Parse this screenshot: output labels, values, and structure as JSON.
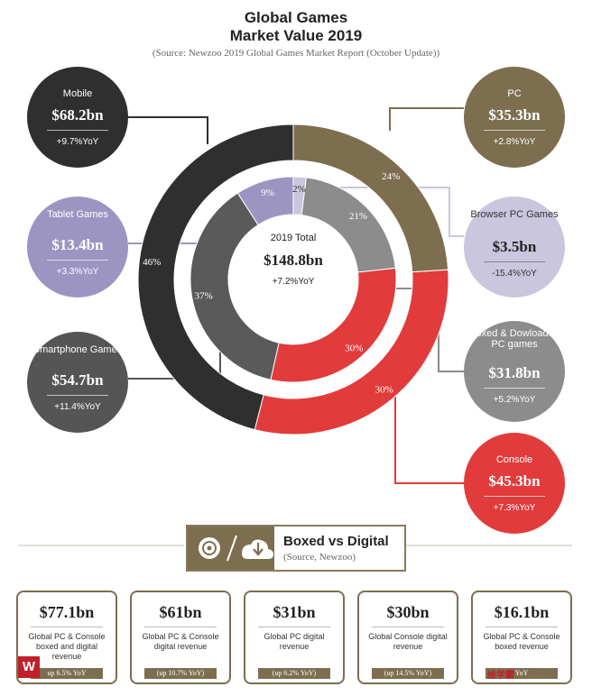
{
  "header": {
    "title_line1": "Global Games",
    "title_line2": "Market Value 2019",
    "source": "(Source: Newzoo 2019 Global Games Market Report (October Update))"
  },
  "center": {
    "label": "2019 Total",
    "value": "$148.8bn",
    "yoy": "+7.2%YoY"
  },
  "chart_data": {
    "type": "donut",
    "unit": "USD billions",
    "rings": [
      {
        "ring": "outer",
        "segments": [
          {
            "name": "PC",
            "percent": 24,
            "percent_label": "24%",
            "value": 35.3,
            "color": "#7d6e4f"
          },
          {
            "name": "Console",
            "percent": 30,
            "percent_label": "30%",
            "value": 45.3,
            "color": "#e23b3b"
          },
          {
            "name": "Mobile",
            "percent": 46,
            "percent_label": "46%",
            "value": 68.2,
            "color": "#2f2f2f"
          }
        ]
      },
      {
        "ring": "inner",
        "segments": [
          {
            "name": "Browser PC Games",
            "percent": 2,
            "percent_label": "2%",
            "value": 3.5,
            "color": "#c9c6de"
          },
          {
            "name": "Boxed & Dowloaded PC games",
            "percent": 21,
            "percent_label": "21%",
            "value": 31.8,
            "color": "#8c8c8c"
          },
          {
            "name": "Console",
            "percent": 30,
            "percent_label": "30%",
            "value": 45.3,
            "color": "#e23b3b"
          },
          {
            "name": "Smartphone Games",
            "percent": 37,
            "percent_label": "37%",
            "value": 54.7,
            "color": "#5a5a5a"
          },
          {
            "name": "Tablet Games",
            "percent": 9,
            "percent_label": "9%",
            "value": 13.4,
            "color": "#9c95c2"
          }
        ]
      }
    ]
  },
  "bubbles": [
    {
      "label": "Mobile",
      "value": "$68.2bn",
      "yoy": "+9.7%YoY",
      "color": "#2f2f2f"
    },
    {
      "label": "Tablet Games",
      "value": "$13.4bn",
      "yoy": "+3.3%YoY",
      "color": "#9c95c2"
    },
    {
      "label": "Smartphone Games",
      "value": "$54.7bn",
      "yoy": "+11.4%YoY",
      "color": "#555555"
    },
    {
      "label": "PC",
      "value": "$35.3bn",
      "yoy": "+2.8%YoY",
      "color": "#7d6e4f"
    },
    {
      "label": "Browser PC Games",
      "value": "$3.5bn",
      "yoy": "-15.4%YoY",
      "color": "#c9c6de"
    },
    {
      "label": "Boxed & Dowloaded PC games",
      "value": "$31.8bn",
      "yoy": "+5.2%YoY",
      "color": "#8c8c8c"
    },
    {
      "label": "Console",
      "value": "$45.3bn",
      "yoy": "+7.3%YoY",
      "color": "#e23b3b"
    }
  ],
  "section": {
    "title": "Boxed vs Digital",
    "source": "(Source, Newzoo)"
  },
  "cards": [
    {
      "value": "$77.1bn",
      "desc": "Global PC & Console boxed and digital revenue",
      "badge": "up 6.5% YoY"
    },
    {
      "value": "$61bn",
      "desc": "Global PC & Console digital revenue",
      "badge": "(up 10.7% YoY)"
    },
    {
      "value": "$31bn",
      "desc": "Global PC digital revenue",
      "badge": "(up 6.2% YoY)"
    },
    {
      "value": "$30bn",
      "desc": "Global Console digital revenue",
      "badge": "(up 14.5% YoY)"
    },
    {
      "value": "$16.1bn",
      "desc": "Global PC & Console boxed revenue",
      "badge": "YoY"
    }
  ],
  "watermark": {
    "logo_letter": "W",
    "text": "绘学霸"
  },
  "colors": {
    "accent": "#7d6e4f",
    "console": "#e23b3b",
    "mobile": "#2f2f2f"
  }
}
